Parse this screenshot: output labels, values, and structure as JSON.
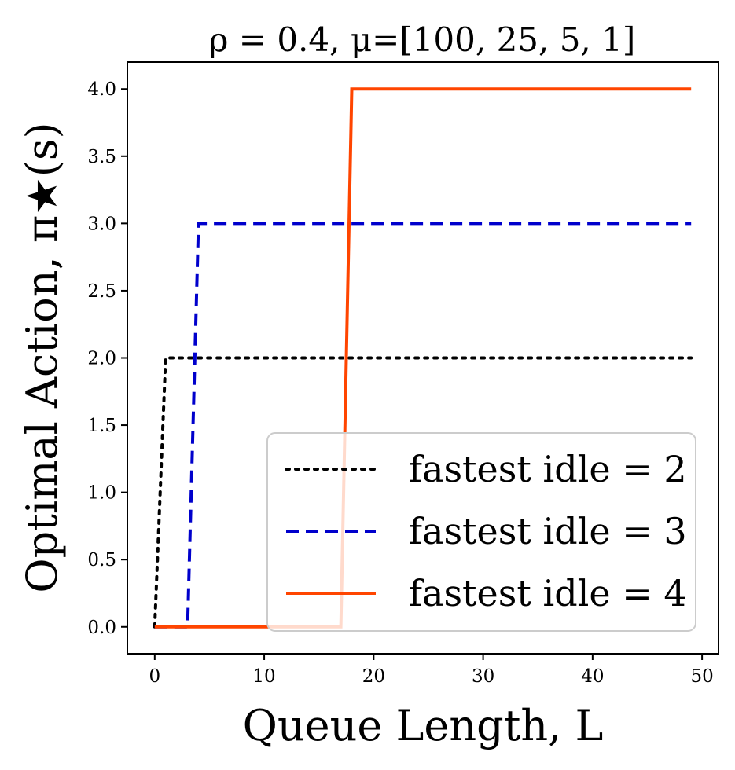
{
  "chart_data": {
    "type": "line",
    "title": "ρ = 0.4, μ=[100, 25, 5, 1]",
    "xlabel": "Queue Length, L",
    "ylabel": "Optimal Action, π★(s)",
    "xlim": [
      -2.5,
      51.5
    ],
    "ylim": [
      -0.2,
      4.2
    ],
    "xticks": [
      0,
      10,
      20,
      30,
      40,
      50
    ],
    "yticks": [
      0.0,
      0.5,
      1.0,
      1.5,
      2.0,
      2.5,
      3.0,
      3.5,
      4.0
    ],
    "xtick_labels": [
      "0",
      "10",
      "20",
      "30",
      "40",
      "50"
    ],
    "ytick_labels": [
      "0.0",
      "0.5",
      "1.0",
      "1.5",
      "2.0",
      "2.5",
      "3.0",
      "3.5",
      "4.0"
    ],
    "grid": false,
    "legend_position": "lower right",
    "series": [
      {
        "name": "fastest idle = 2",
        "color": "#000000",
        "style": "dotted",
        "x": [
          0,
          1,
          49
        ],
        "y": [
          0,
          2,
          2
        ]
      },
      {
        "name": "fastest idle = 3",
        "color": "#0000cc",
        "style": "dashed",
        "x": [
          0,
          3,
          4,
          49
        ],
        "y": [
          0,
          0,
          3,
          3
        ]
      },
      {
        "name": "fastest idle = 4",
        "color": "#ff4500",
        "style": "solid",
        "x": [
          0,
          17,
          18,
          49
        ],
        "y": [
          0,
          0,
          4,
          4
        ]
      }
    ]
  }
}
